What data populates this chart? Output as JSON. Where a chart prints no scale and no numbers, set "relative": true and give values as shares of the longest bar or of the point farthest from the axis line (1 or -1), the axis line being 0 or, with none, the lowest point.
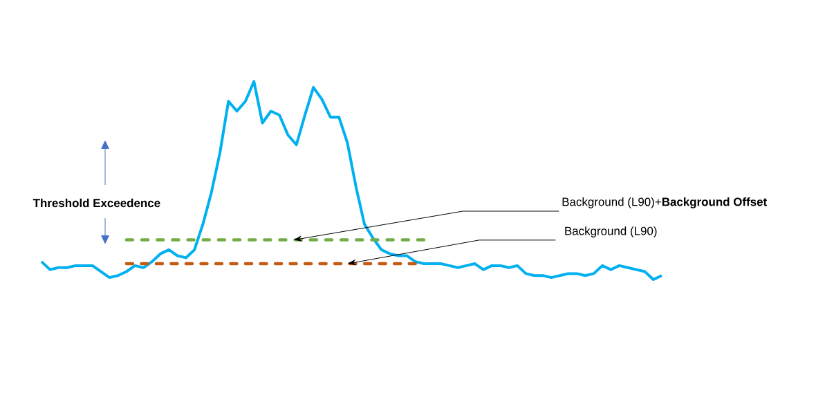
{
  "chart_data": {
    "type": "line",
    "relative": true,
    "categories": [
      null,
      null,
      null,
      null,
      null,
      null,
      null,
      null,
      null,
      null,
      null,
      null,
      null,
      null,
      null,
      null,
      null,
      null,
      null,
      null,
      null,
      null,
      null,
      null,
      null,
      null,
      null,
      null,
      null,
      null,
      null,
      null,
      null,
      null,
      null,
      null,
      null,
      null,
      null,
      null,
      null,
      null,
      null,
      null,
      null,
      null,
      null,
      null,
      null,
      null,
      null,
      null,
      null,
      null,
      null,
      null,
      null,
      null,
      null,
      null,
      null,
      null,
      null,
      null,
      null,
      null,
      null,
      null,
      null,
      null,
      null,
      null,
      null,
      null
    ],
    "series": [
      {
        "color": "#00b0f0",
        "line_style": "solid",
        "values": [
          0.09,
          0.05,
          0.06,
          0.06,
          0.07,
          0.07,
          0.07,
          0.04,
          0.01,
          0.02,
          0.04,
          0.07,
          0.06,
          0.09,
          0.13,
          0.15,
          0.12,
          0.11,
          0.15,
          0.28,
          0.44,
          0.64,
          0.9,
          0.85,
          0.9,
          1,
          0.79,
          0.85,
          0.83,
          0.73,
          0.68,
          0.83,
          0.97,
          0.91,
          0.82,
          0.82,
          0.69,
          0.47,
          0.28,
          0.21,
          0.15,
          0.13,
          0.12,
          0.12,
          0.09,
          0.08,
          0.08,
          0.08,
          0.07,
          0.06,
          0.07,
          0.08,
          0.05,
          0.07,
          0.07,
          0.06,
          0.07,
          0.03,
          0.02,
          0.02,
          0.01,
          0.02,
          0.03,
          0.03,
          0.02,
          0.03,
          0.07,
          0.05,
          0.07,
          0.06,
          0.05,
          0.04,
          0,
          0.02
        ]
      },
      {
        "name": "Background (L90)+**Background Offset**",
        "color": "#70ad47",
        "line_style": "dashed",
        "values": [
          null,
          null,
          null,
          null,
          null,
          null,
          null,
          null,
          null,
          null,
          0.2,
          0.2,
          0.2,
          0.2,
          0.2,
          0.2,
          0.2,
          0.2,
          0.2,
          0.2,
          0.2,
          0.2,
          0.2,
          0.2,
          0.2,
          0.2,
          0.2,
          0.2,
          0.2,
          0.2,
          0.2,
          0.2,
          0.2,
          0.2,
          0.2,
          0.2,
          0.2,
          0.2,
          0.2,
          0.2,
          0.2,
          0.2,
          0.2,
          0.2,
          0.2,
          0.2,
          null,
          null,
          null,
          null,
          null,
          null,
          null,
          null,
          null,
          null,
          null,
          null,
          null,
          null,
          null,
          null,
          null,
          null,
          null,
          null,
          null,
          null,
          null,
          null,
          null,
          null,
          null,
          null
        ]
      },
      {
        "name": "Background (L90)",
        "color": "#c55a11",
        "line_style": "dashed",
        "values": [
          null,
          null,
          null,
          null,
          null,
          null,
          null,
          null,
          null,
          null,
          0.08,
          0.08,
          0.08,
          0.08,
          0.08,
          0.08,
          0.08,
          0.08,
          0.08,
          0.08,
          0.08,
          0.08,
          0.08,
          0.08,
          0.08,
          0.08,
          0.08,
          0.08,
          0.08,
          0.08,
          0.08,
          0.08,
          0.08,
          0.08,
          0.08,
          0.08,
          0.08,
          0.08,
          0.08,
          0.08,
          0.08,
          0.08,
          0.08,
          0.08,
          0.08,
          null,
          null,
          null,
          null,
          null,
          null,
          null,
          null,
          null,
          null,
          null,
          null,
          null,
          null,
          null,
          null,
          null,
          null,
          null,
          null,
          null,
          null,
          null,
          null,
          null,
          null,
          null,
          null,
          null
        ]
      }
    ],
    "annotations": [
      "Threshold Exceedence"
    ]
  }
}
